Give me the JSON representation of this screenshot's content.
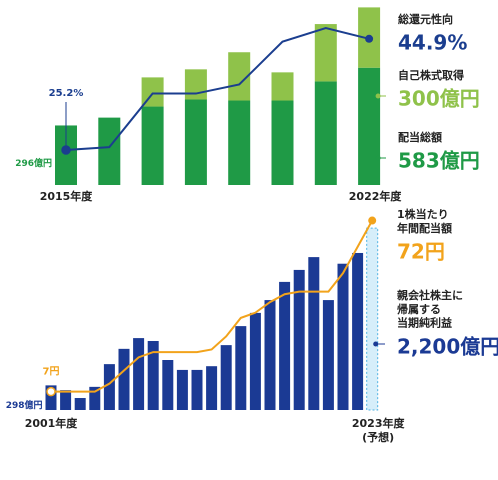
{
  "chart_data": [
    {
      "type": "bar",
      "categories": [
        "2015年度",
        null,
        null,
        null,
        null,
        null,
        null,
        "2022年度"
      ],
      "ylim": [
        0,
        870
      ],
      "y2lim": [
        19,
        50
      ],
      "series": [
        {
          "name": "配当総額",
          "color": "#1f9a46",
          "values": [
            296,
            335,
            390,
            425,
            420,
            420,
            515,
            583
          ],
          "value_labels": [
            "296億円",
            null,
            null,
            null,
            null,
            null,
            null,
            "583億円"
          ]
        },
        {
          "name": "自己株式取得",
          "color": "#8fc24a",
          "values": [
            0,
            0,
            145,
            150,
            240,
            140,
            285,
            300
          ],
          "value_labels": [
            null,
            null,
            null,
            null,
            null,
            null,
            null,
            "300億円"
          ]
        },
        {
          "name": "総還元性向",
          "type": "line",
          "axis": "y2",
          "color": "#1b3e8f",
          "values": [
            25.2,
            25.7,
            35.2,
            35.2,
            36.8,
            44.4,
            46.8,
            44.9
          ],
          "value_labels": [
            "25.2%",
            null,
            null,
            null,
            null,
            null,
            null,
            "44.9%"
          ]
        }
      ]
    },
    {
      "type": "bar",
      "categories": [
        "2001年度",
        null,
        null,
        null,
        null,
        null,
        null,
        null,
        null,
        null,
        null,
        null,
        null,
        null,
        null,
        null,
        null,
        null,
        null,
        null,
        null,
        null,
        "2023年度\n(予想)"
      ],
      "ylim": [
        0,
        2420
      ],
      "y2lim": [
        0,
        76
      ],
      "series": [
        {
          "name": "親会社株主に\n帰属する\n当期純利益",
          "color": "#1b3a94",
          "colors": [
            "#1b3a94",
            "#1b3a94",
            "#1b3a94",
            "#1b3a94",
            "#1b3a94",
            "#1b3a94",
            "#1b3a94",
            "#1b3a94",
            "#1b3a94",
            "#1b3a94",
            "#1b3a94",
            "#1b3a94",
            "#1b3a94",
            "#1b3a94",
            "#1b3a94",
            "#1b3a94",
            "#1b3a94",
            "#1b3a94",
            "#1b3a94",
            "#1b3a94",
            "#1b3a94",
            "#1b3a94",
            "#d6eefa"
          ],
          "values": [
            298,
            240,
            145,
            280,
            555,
            740,
            870,
            835,
            605,
            485,
            485,
            530,
            785,
            1015,
            1175,
            1330,
            1550,
            1695,
            1850,
            1330,
            1770,
            1900,
            2200
          ],
          "value_labels": [
            "298億円",
            null,
            null,
            null,
            null,
            null,
            null,
            null,
            null,
            null,
            null,
            null,
            null,
            null,
            null,
            null,
            null,
            null,
            null,
            null,
            null,
            null,
            "2,200億円"
          ]
        },
        {
          "name": "1株当たり\n年間配当額",
          "type": "line",
          "axis": "y2",
          "color": "#f2a31b",
          "values": [
            7,
            7,
            7,
            7,
            10,
            15,
            20,
            22,
            22,
            22,
            22,
            23,
            28,
            35,
            37,
            41,
            44,
            45,
            45,
            45,
            52,
            62,
            72
          ],
          "value_labels": [
            "7円",
            null,
            null,
            null,
            null,
            null,
            null,
            null,
            null,
            null,
            null,
            null,
            null,
            null,
            null,
            null,
            null,
            null,
            null,
            null,
            null,
            null,
            "72円"
          ]
        }
      ]
    }
  ]
}
